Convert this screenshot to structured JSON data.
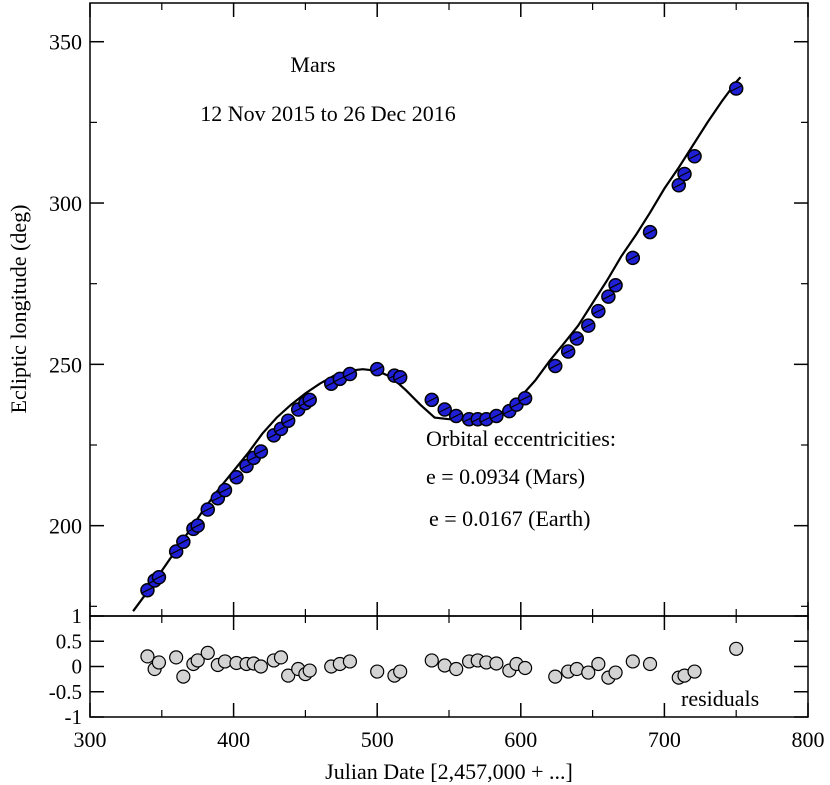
{
  "chart_data": [
    {
      "type": "scatter",
      "panel": "main",
      "annotations": {
        "object": "Mars",
        "date_range": "12 Nov 2015 to 26 Dec 2016",
        "ecc_title": "Orbital eccentricities:",
        "ecc_mars": "e = 0.0934 (Mars)",
        "ecc_earth": "e = 0.0167 (Earth)"
      },
      "ylabel": "Ecliptic longitude (deg)",
      "xlim": [
        300,
        800
      ],
      "ylim": [
        172,
        362
      ],
      "yticks": [
        200,
        250,
        300,
        350
      ],
      "point_color": "#1f1fd6",
      "line_color": "#000000",
      "fit_curve": {
        "x": [
          330,
          340,
          350,
          360,
          370,
          380,
          390,
          400,
          410,
          420,
          430,
          440,
          450,
          460,
          470,
          480,
          490,
          500,
          510,
          520,
          530,
          540,
          550,
          560,
          570,
          580,
          590,
          600,
          610,
          620,
          630,
          640,
          650,
          660,
          670,
          680,
          690,
          700,
          710,
          720,
          730,
          740,
          750,
          753
        ],
        "y": [
          173.5,
          179.5,
          186,
          192.5,
          199,
          205.5,
          211.5,
          217,
          222.5,
          228.5,
          233.5,
          237.5,
          241,
          244,
          246.5,
          248,
          248.5,
          248,
          246,
          242,
          237.5,
          233.5,
          233,
          233,
          233,
          233.5,
          236,
          240,
          245,
          251,
          256.5,
          262,
          269,
          276,
          283.5,
          290,
          297,
          304.5,
          311,
          318,
          325,
          331.5,
          337.5,
          339
        ]
      },
      "points": [
        {
          "x": 340,
          "y": 180
        },
        {
          "x": 345,
          "y": 183
        },
        {
          "x": 348,
          "y": 184
        },
        {
          "x": 360,
          "y": 192
        },
        {
          "x": 365,
          "y": 195
        },
        {
          "x": 372,
          "y": 199
        },
        {
          "x": 375,
          "y": 200
        },
        {
          "x": 382,
          "y": 205
        },
        {
          "x": 389,
          "y": 208.5
        },
        {
          "x": 394,
          "y": 211
        },
        {
          "x": 402,
          "y": 215
        },
        {
          "x": 409,
          "y": 218.5
        },
        {
          "x": 414,
          "y": 221
        },
        {
          "x": 419,
          "y": 223
        },
        {
          "x": 428,
          "y": 228
        },
        {
          "x": 433,
          "y": 230
        },
        {
          "x": 438,
          "y": 232.5
        },
        {
          "x": 445,
          "y": 236
        },
        {
          "x": 450,
          "y": 238
        },
        {
          "x": 453,
          "y": 239
        },
        {
          "x": 468,
          "y": 244
        },
        {
          "x": 474,
          "y": 245.5
        },
        {
          "x": 481,
          "y": 247
        },
        {
          "x": 500,
          "y": 248.5
        },
        {
          "x": 512,
          "y": 246.5
        },
        {
          "x": 516,
          "y": 246
        },
        {
          "x": 538,
          "y": 239
        },
        {
          "x": 547,
          "y": 236
        },
        {
          "x": 555,
          "y": 234
        },
        {
          "x": 564,
          "y": 233
        },
        {
          "x": 570,
          "y": 233
        },
        {
          "x": 576,
          "y": 233
        },
        {
          "x": 583,
          "y": 234
        },
        {
          "x": 592,
          "y": 235.5
        },
        {
          "x": 597,
          "y": 237.5
        },
        {
          "x": 603,
          "y": 239.5
        },
        {
          "x": 624,
          "y": 249.5
        },
        {
          "x": 633,
          "y": 254
        },
        {
          "x": 639,
          "y": 258
        },
        {
          "x": 647,
          "y": 262
        },
        {
          "x": 654,
          "y": 266.5
        },
        {
          "x": 661,
          "y": 271
        },
        {
          "x": 666,
          "y": 274.5
        },
        {
          "x": 678,
          "y": 283
        },
        {
          "x": 690,
          "y": 291
        },
        {
          "x": 710,
          "y": 305.5
        },
        {
          "x": 714,
          "y": 309
        },
        {
          "x": 721,
          "y": 314.5
        },
        {
          "x": 750,
          "y": 335.5
        }
      ]
    },
    {
      "type": "scatter",
      "panel": "residuals",
      "annotations": {
        "label": "residuals"
      },
      "xlabel": "Julian Date [2,457,000 + ...]",
      "xlim": [
        300,
        800
      ],
      "ylim": [
        -1,
        1
      ],
      "xticks": [
        300,
        400,
        500,
        600,
        700,
        800
      ],
      "yticks": [
        1,
        0.5,
        0,
        -0.5,
        -1
      ],
      "ytick_labels": [
        "1",
        "0.5",
        "0",
        "-0.5",
        "-1"
      ],
      "point_color": "#d3d3d3",
      "points": [
        {
          "x": 340,
          "y": 0.2
        },
        {
          "x": 345,
          "y": -0.05
        },
        {
          "x": 348,
          "y": 0.08
        },
        {
          "x": 360,
          "y": 0.18
        },
        {
          "x": 365,
          "y": -0.2
        },
        {
          "x": 372,
          "y": 0.05
        },
        {
          "x": 375,
          "y": 0.12
        },
        {
          "x": 382,
          "y": 0.27
        },
        {
          "x": 389,
          "y": 0.03
        },
        {
          "x": 394,
          "y": 0.1
        },
        {
          "x": 402,
          "y": 0.07
        },
        {
          "x": 409,
          "y": 0.05
        },
        {
          "x": 414,
          "y": 0.06
        },
        {
          "x": 419,
          "y": 0.0
        },
        {
          "x": 428,
          "y": 0.12
        },
        {
          "x": 433,
          "y": 0.18
        },
        {
          "x": 438,
          "y": -0.18
        },
        {
          "x": 445,
          "y": -0.05
        },
        {
          "x": 450,
          "y": -0.15
        },
        {
          "x": 453,
          "y": -0.08
        },
        {
          "x": 468,
          "y": 0.0
        },
        {
          "x": 474,
          "y": 0.05
        },
        {
          "x": 481,
          "y": 0.1
        },
        {
          "x": 500,
          "y": -0.1
        },
        {
          "x": 512,
          "y": -0.18
        },
        {
          "x": 516,
          "y": -0.1
        },
        {
          "x": 538,
          "y": 0.12
        },
        {
          "x": 547,
          "y": 0.02
        },
        {
          "x": 555,
          "y": -0.05
        },
        {
          "x": 564,
          "y": 0.1
        },
        {
          "x": 570,
          "y": 0.12
        },
        {
          "x": 576,
          "y": 0.08
        },
        {
          "x": 583,
          "y": 0.06
        },
        {
          "x": 592,
          "y": -0.08
        },
        {
          "x": 597,
          "y": 0.05
        },
        {
          "x": 603,
          "y": -0.03
        },
        {
          "x": 624,
          "y": -0.2
        },
        {
          "x": 633,
          "y": -0.1
        },
        {
          "x": 639,
          "y": -0.05
        },
        {
          "x": 647,
          "y": -0.12
        },
        {
          "x": 654,
          "y": 0.05
        },
        {
          "x": 661,
          "y": -0.22
        },
        {
          "x": 666,
          "y": -0.12
        },
        {
          "x": 678,
          "y": 0.1
        },
        {
          "x": 690,
          "y": 0.05
        },
        {
          "x": 710,
          "y": -0.22
        },
        {
          "x": 714,
          "y": -0.18
        },
        {
          "x": 721,
          "y": -0.1
        },
        {
          "x": 750,
          "y": 0.35
        }
      ]
    }
  ]
}
